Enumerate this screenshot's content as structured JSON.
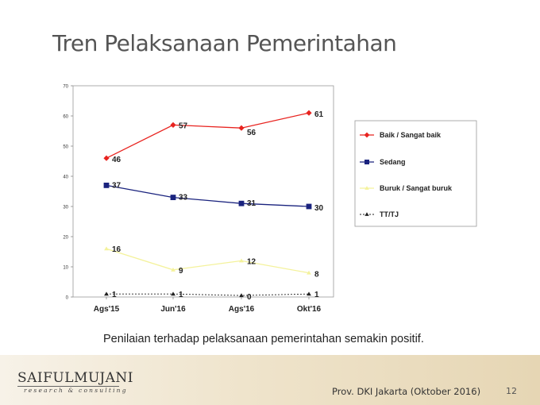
{
  "slide": {
    "title": "Tren Pelaksanaan Pemerintahan",
    "caption": "Penilaian terhadap pelaksanaan pemerintahan semakin positif.",
    "logo_main": "SAIFULMUJANI",
    "logo_sub": "research & consulting",
    "source": "Prov. DKI Jakarta (Oktober 2016)",
    "page_number": "12"
  },
  "chart_data": {
    "type": "line",
    "categories": [
      "Ags'15",
      "Jun'16",
      "Ags'16",
      "Okt'16"
    ],
    "ylim": [
      0,
      70
    ],
    "yticks": [
      0,
      10,
      20,
      30,
      40,
      50,
      60,
      70
    ],
    "grid": false,
    "legend_position": "right",
    "series": [
      {
        "name": "Baik / Sangat baik",
        "values": [
          46,
          57,
          56,
          61
        ],
        "labels": [
          "46",
          "57",
          "56",
          "61"
        ],
        "color": "#e8231f",
        "marker": "diamond",
        "dash": ""
      },
      {
        "name": "Sedang",
        "values": [
          37,
          33,
          31,
          30
        ],
        "labels": [
          "37",
          "33",
          "31",
          "30"
        ],
        "color": "#1a237e",
        "marker": "square",
        "dash": ""
      },
      {
        "name": "Buruk / Sangat buruk",
        "values": [
          16,
          9,
          12,
          8
        ],
        "labels": [
          "16",
          "9",
          "12",
          "8"
        ],
        "color": "#f4f29c",
        "marker": "triangle",
        "dash": ""
      },
      {
        "name": "TT/TJ",
        "values": [
          1,
          1,
          0.5,
          1
        ],
        "labels": [
          "1",
          "1",
          "0",
          "1"
        ],
        "color": "#222222",
        "marker": "triangle",
        "dash": "2,2"
      }
    ]
  }
}
